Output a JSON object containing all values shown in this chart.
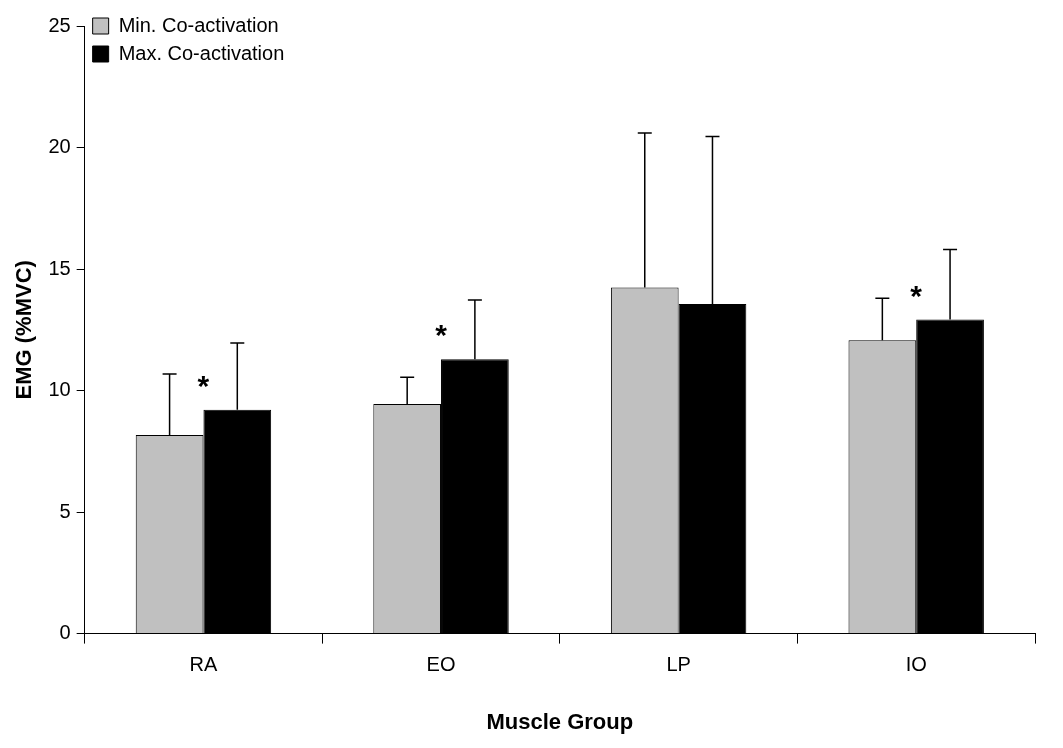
{
  "chart_data": {
    "type": "bar",
    "xlabel": "Muscle Group",
    "ylabel": "EMG (%MVC)",
    "categories": [
      "RA",
      "EO",
      "LP",
      "IO"
    ],
    "series": [
      {
        "name": "Min. Co-activation",
        "color": "#c0c0c0",
        "values": [
          8.17,
          9.45,
          14.24,
          12.07
        ],
        "errors": [
          [
            8.17,
            10.68
          ],
          [
            9.45,
            10.55
          ],
          [
            14.24,
            20.6
          ],
          [
            12.07,
            13.8
          ]
        ]
      },
      {
        "name": "Max. Co-activation",
        "color": "#000000",
        "values": [
          9.21,
          11.29,
          13.56,
          12.92
        ],
        "errors": [
          [
            9.21,
            11.96
          ],
          [
            11.29,
            13.73
          ],
          [
            13.56,
            20.45
          ],
          [
            12.92,
            15.8
          ]
        ]
      }
    ],
    "ylim": [
      0,
      25
    ],
    "yticks": [
      0,
      5,
      10,
      15,
      20,
      25
    ],
    "grid": false,
    "legend": "top left",
    "annotations": [
      "*",
      "*",
      "*"
    ]
  }
}
